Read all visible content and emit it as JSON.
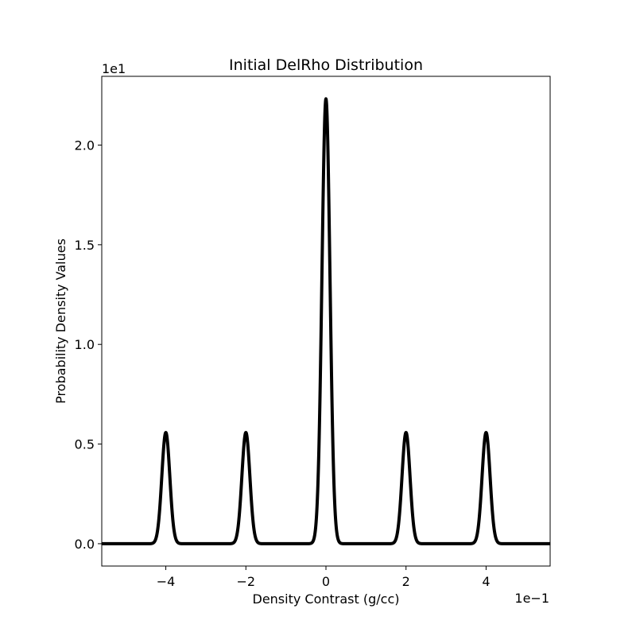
{
  "chart_data": {
    "type": "line",
    "title": "Initial DelRho Distribution",
    "xlabel": "Density Contrast (g/cc)",
    "ylabel": "Probability Density Values",
    "x_offset_text": "1e−1",
    "y_offset_text": "1e1",
    "xlim": [
      -5.6,
      5.6
    ],
    "ylim": [
      -0.112,
      2.345
    ],
    "x_ticks": [
      -4,
      -2,
      0,
      2,
      4
    ],
    "x_tick_labels": [
      "−4",
      "−2",
      "0",
      "2",
      "4"
    ],
    "y_ticks": [
      0.0,
      0.5,
      1.0,
      1.5,
      2.0
    ],
    "y_tick_labels": [
      "0.0",
      "0.5",
      "1.0",
      "1.5",
      "2.0"
    ],
    "grid": false,
    "line_color": "#000000",
    "series": [
      {
        "components": [
          {
            "center": -4,
            "peak": 0.558,
            "sigma": 0.1
          },
          {
            "center": -2,
            "peak": 0.558,
            "sigma": 0.1
          },
          {
            "center": 0,
            "peak": 2.232,
            "sigma": 0.1
          },
          {
            "center": 2,
            "peak": 0.558,
            "sigma": 0.1
          },
          {
            "center": 4,
            "peak": 0.558,
            "sigma": 0.1
          }
        ]
      }
    ]
  }
}
